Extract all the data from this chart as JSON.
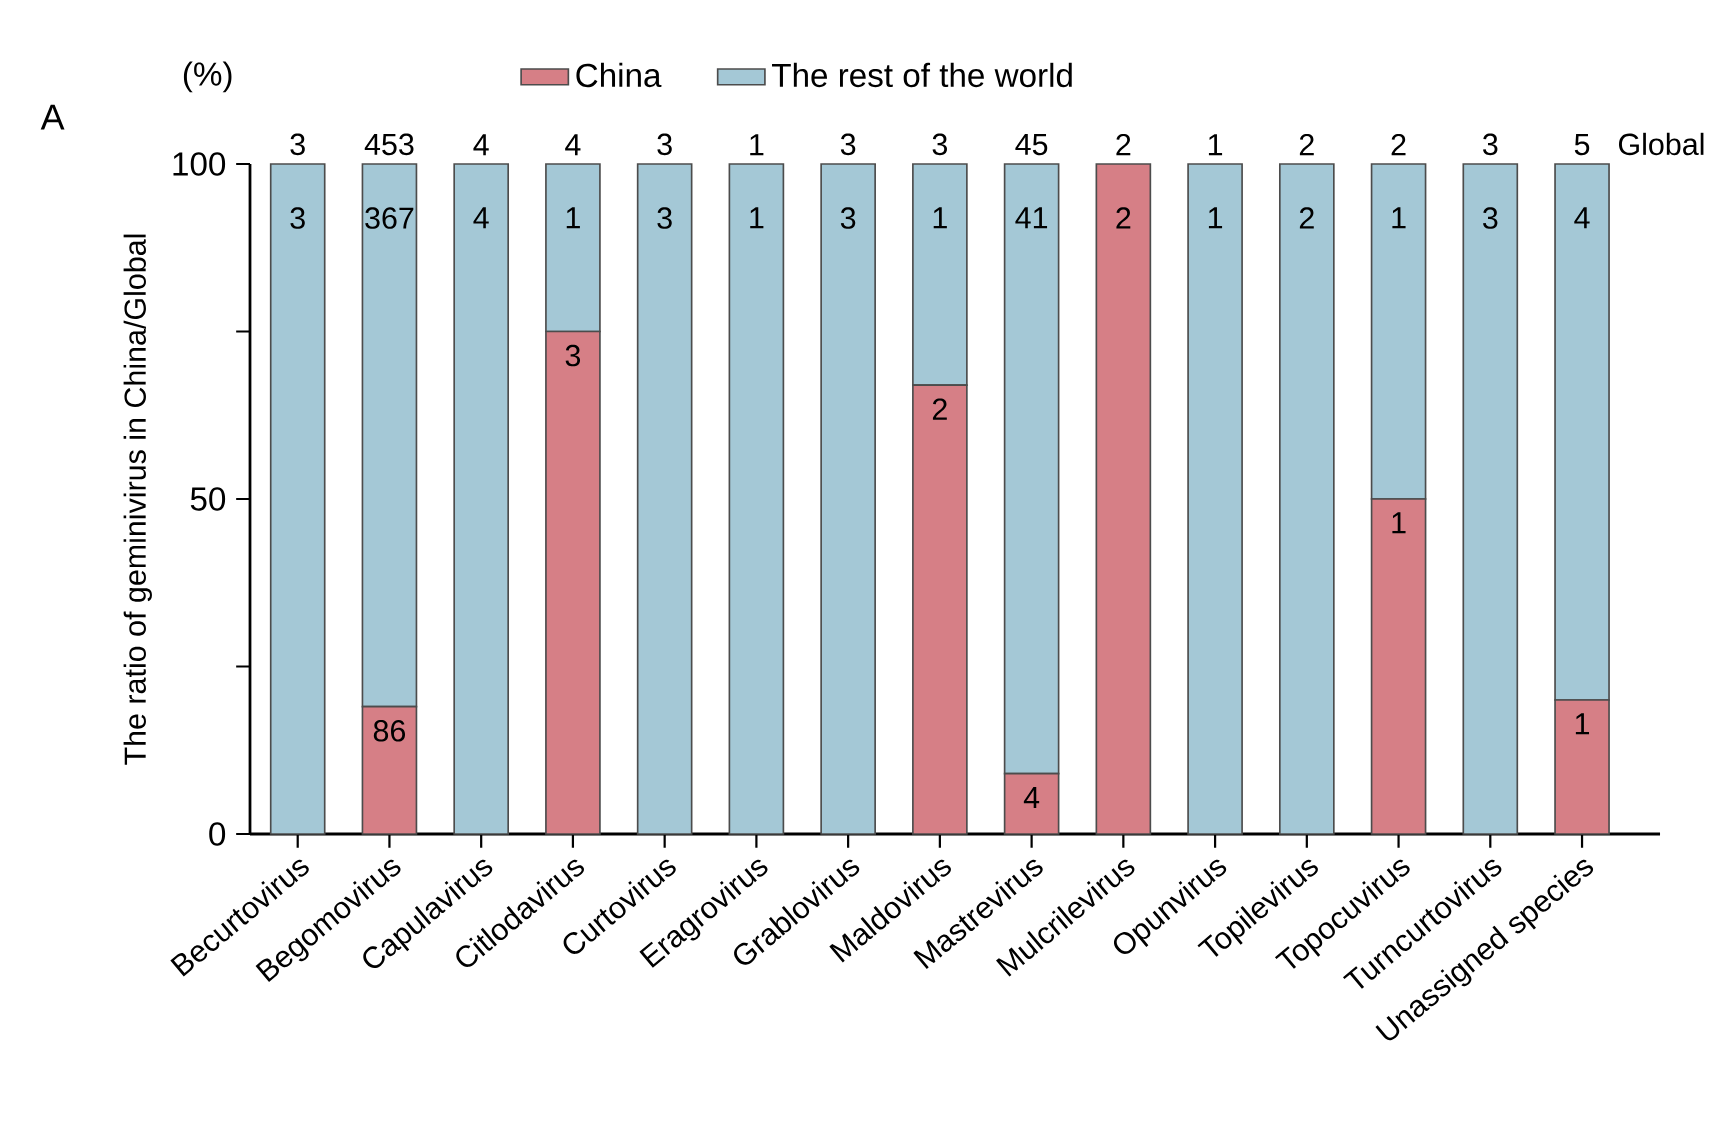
{
  "chart_data": {
    "type": "bar",
    "stacked": true,
    "ylabel": "The ratio of geminivirus in China/Global",
    "categories": [
      "Becurtovirus",
      "Begomovirus",
      "Capulavirus",
      "Citlodavirus",
      "Curtovirus",
      "Eragrovirus",
      "Grablovirus",
      "Maldovirus",
      "Mastrevirus",
      "Mulcrilevirus",
      "Opunvirus",
      "Topilevirus",
      "Topocuvirus",
      "Turncurtovirus",
      "Unassigned species"
    ],
    "series": [
      {
        "name": "China",
        "color": "#d67f86",
        "values": [
          0,
          19,
          0,
          75,
          0,
          0,
          0,
          67,
          9,
          100,
          0,
          0,
          50,
          0,
          20
        ]
      },
      {
        "name": "The rest of the world",
        "color": "#a4c8d6",
        "values": [
          100,
          81,
          100,
          25,
          100,
          100,
          100,
          33,
          91,
          0,
          100,
          100,
          50,
          100,
          80
        ]
      }
    ],
    "ylim": [
      0,
      100
    ],
    "yticks": [
      0,
      {
        "value": 25,
        "label": null
      },
      50,
      {
        "value": 75,
        "label": null
      },
      100
    ],
    "legend": "top",
    "grid": false,
    "annotations": [
      "A",
      "(%)",
      "Global",
      {
        "text": "3",
        "x": "Becurtovirus",
        "y": 100
      },
      {
        "text": "453",
        "x": "Begomovirus",
        "y": 100
      },
      {
        "text": "4",
        "x": "Capulavirus",
        "y": 100
      },
      {
        "text": "4",
        "x": "Citlodavirus",
        "y": 100
      },
      {
        "text": "3",
        "x": "Curtovirus",
        "y": 100
      },
      {
        "text": "1",
        "x": "Eragrovirus",
        "y": 100
      },
      {
        "text": "3",
        "x": "Grablovirus",
        "y": 100
      },
      {
        "text": "3",
        "x": "Maldovirus",
        "y": 100
      },
      {
        "text": "45",
        "x": "Mastrevirus",
        "y": 100
      },
      {
        "text": "2",
        "x": "Mulcrilevirus",
        "y": 100
      },
      {
        "text": "1",
        "x": "Opunvirus",
        "y": 100
      },
      {
        "text": "2",
        "x": "Topilevirus",
        "y": 100
      },
      {
        "text": "2",
        "x": "Topocuvirus",
        "y": 100
      },
      {
        "text": "3",
        "x": "Turncurtovirus",
        "y": 100
      },
      {
        "text": "5",
        "x": "Unassigned species",
        "y": 100
      },
      {
        "text": "3",
        "x": "Becurtovirus",
        "y": 100
      },
      {
        "text": "367",
        "x": "Begomovirus",
        "y": 100
      },
      {
        "text": "4",
        "x": "Capulavirus",
        "y": 100
      },
      {
        "text": "1",
        "x": "Citlodavirus",
        "y": 100
      },
      {
        "text": "3",
        "x": "Curtovirus",
        "y": 100
      },
      {
        "text": "1",
        "x": "Eragrovirus",
        "y": 100
      },
      {
        "text": "3",
        "x": "Grablovirus",
        "y": 100
      },
      {
        "text": "1",
        "x": "Maldovirus",
        "y": 100
      },
      {
        "text": "41",
        "x": "Mastrevirus",
        "y": 100
      },
      {
        "text": "1",
        "x": "Opunvirus",
        "y": 100
      },
      {
        "text": "2",
        "x": "Topilevirus",
        "y": 100
      },
      {
        "text": "1",
        "x": "Topocuvirus",
        "y": 100
      },
      {
        "text": "3",
        "x": "Turncurtovirus",
        "y": 100
      },
      {
        "text": "4",
        "x": "Unassigned species",
        "y": 100
      },
      {
        "text": "86",
        "x": "Begomovirus",
        "y": 19
      },
      {
        "text": "3",
        "x": "Citlodavirus",
        "y": 75
      },
      {
        "text": "2",
        "x": "Maldovirus",
        "y": 67
      },
      {
        "text": "4",
        "x": "Mastrevirus",
        "y": 9
      },
      {
        "text": "2",
        "x": "Mulcrilevirus",
        "y": 100
      },
      {
        "text": "1",
        "x": "Topocuvirus",
        "y": 50
      },
      {
        "text": "1",
        "x": "Unassigned species",
        "y": 20
      }
    ]
  }
}
